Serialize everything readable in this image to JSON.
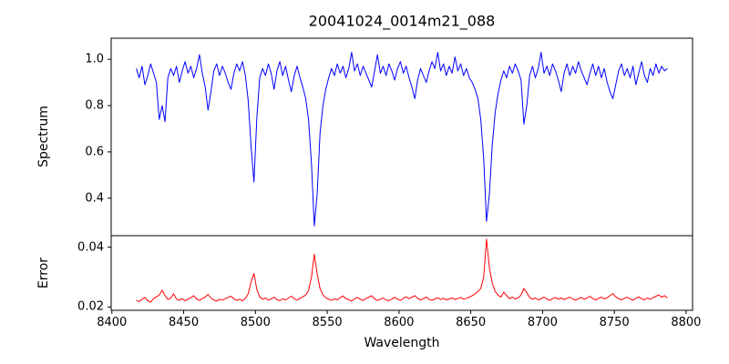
{
  "figure": {
    "title": "20041024_0014m21_088",
    "xlabel": "Wavelength",
    "background": "#ffffff",
    "spine_color": "#000000",
    "text_color": "#000000"
  },
  "chart_data": {
    "type": "line",
    "title": "20041024_0014m21_088",
    "xlabel": "Wavelength",
    "grid": false,
    "legend": "none",
    "x_start": 8417,
    "x_step": 2,
    "n_points": 186,
    "xlim": [
      8399.5,
      8804.5
    ],
    "xticks": [
      "8400",
      "8450",
      "8500",
      "8550",
      "8600",
      "8650",
      "8700",
      "8750",
      "8800"
    ],
    "notable_features": {
      "absorption_lines_wavelength": [
        8498,
        8542,
        8662
      ],
      "absorption_line_depths": [
        0.47,
        0.28,
        0.3
      ],
      "error_peak_values": [
        0.031,
        0.038,
        0.043
      ]
    },
    "panels": [
      {
        "name": "spectrum",
        "ylabel": "Spectrum",
        "color": "#0000ff",
        "ylim": [
          0.238,
          1.091
        ],
        "yticks": [
          "0.4",
          "0.6",
          "0.8",
          "1.0"
        ],
        "values": [
          0.96,
          0.92,
          0.97,
          0.89,
          0.93,
          0.98,
          0.94,
          0.9,
          0.74,
          0.8,
          0.73,
          0.92,
          0.96,
          0.93,
          0.97,
          0.9,
          0.95,
          0.99,
          0.94,
          0.97,
          0.92,
          0.96,
          1.02,
          0.94,
          0.88,
          0.78,
          0.86,
          0.95,
          0.98,
          0.93,
          0.97,
          0.94,
          0.9,
          0.87,
          0.94,
          0.98,
          0.95,
          0.99,
          0.93,
          0.82,
          0.62,
          0.47,
          0.75,
          0.92,
          0.96,
          0.93,
          0.98,
          0.94,
          0.87,
          0.95,
          0.99,
          0.93,
          0.97,
          0.91,
          0.86,
          0.93,
          0.97,
          0.92,
          0.88,
          0.83,
          0.74,
          0.55,
          0.28,
          0.42,
          0.68,
          0.8,
          0.87,
          0.92,
          0.96,
          0.93,
          0.98,
          0.94,
          0.97,
          0.92,
          0.96,
          1.03,
          0.95,
          0.98,
          0.93,
          0.97,
          0.94,
          0.91,
          0.88,
          0.95,
          1.02,
          0.94,
          0.97,
          0.93,
          0.98,
          0.95,
          0.91,
          0.96,
          0.99,
          0.94,
          0.97,
          0.92,
          0.88,
          0.83,
          0.91,
          0.96,
          0.93,
          0.9,
          0.95,
          0.99,
          0.96,
          1.03,
          0.95,
          0.98,
          0.93,
          0.97,
          0.94,
          1.01,
          0.95,
          0.98,
          0.93,
          0.96,
          0.92,
          0.9,
          0.87,
          0.83,
          0.74,
          0.57,
          0.3,
          0.42,
          0.63,
          0.77,
          0.85,
          0.91,
          0.95,
          0.92,
          0.97,
          0.94,
          0.98,
          0.95,
          0.91,
          0.72,
          0.8,
          0.93,
          0.97,
          0.92,
          0.96,
          1.03,
          0.94,
          0.97,
          0.93,
          0.98,
          0.95,
          0.91,
          0.86,
          0.94,
          0.98,
          0.93,
          0.97,
          0.94,
          0.99,
          0.95,
          0.92,
          0.89,
          0.94,
          0.98,
          0.93,
          0.97,
          0.92,
          0.96,
          0.9,
          0.86,
          0.83,
          0.89,
          0.95,
          0.98,
          0.93,
          0.96,
          0.92,
          0.97,
          0.89,
          0.94,
          0.99,
          0.93,
          0.9,
          0.96,
          0.93,
          0.98,
          0.94,
          0.97,
          0.95,
          0.96
        ]
      },
      {
        "name": "error",
        "ylabel": "Error",
        "color": "#ff0000",
        "ylim": [
          0.0189,
          0.0438
        ],
        "yticks": [
          "0.02",
          "0.04"
        ],
        "values": [
          0.0222,
          0.0218,
          0.0226,
          0.0232,
          0.0221,
          0.0216,
          0.0228,
          0.0234,
          0.024,
          0.0256,
          0.0238,
          0.0225,
          0.023,
          0.0244,
          0.0226,
          0.0222,
          0.0228,
          0.0221,
          0.0226,
          0.0231,
          0.0238,
          0.0227,
          0.0222,
          0.0228,
          0.0233,
          0.0242,
          0.023,
          0.0224,
          0.0219,
          0.0226,
          0.0223,
          0.0228,
          0.0232,
          0.0236,
          0.0227,
          0.0222,
          0.0226,
          0.0221,
          0.0229,
          0.0244,
          0.0285,
          0.0312,
          0.0258,
          0.0234,
          0.0226,
          0.023,
          0.0223,
          0.0227,
          0.0233,
          0.0225,
          0.0221,
          0.0227,
          0.0224,
          0.023,
          0.0236,
          0.0228,
          0.0223,
          0.0229,
          0.0234,
          0.024,
          0.0255,
          0.03,
          0.0376,
          0.031,
          0.0262,
          0.024,
          0.0231,
          0.0226,
          0.0222,
          0.0228,
          0.0224,
          0.0231,
          0.0237,
          0.0228,
          0.0224,
          0.022,
          0.0227,
          0.0232,
          0.0226,
          0.0222,
          0.0228,
          0.0233,
          0.0238,
          0.0227,
          0.0222,
          0.0226,
          0.023,
          0.0224,
          0.0221,
          0.0227,
          0.0232,
          0.0226,
          0.0222,
          0.0229,
          0.0234,
          0.0228,
          0.0233,
          0.0238,
          0.0229,
          0.0224,
          0.0228,
          0.0233,
          0.0226,
          0.0222,
          0.0227,
          0.0231,
          0.0225,
          0.0229,
          0.0224,
          0.0227,
          0.023,
          0.0225,
          0.0228,
          0.0232,
          0.0226,
          0.0229,
          0.0233,
          0.0238,
          0.0244,
          0.0252,
          0.0262,
          0.03,
          0.0427,
          0.033,
          0.028,
          0.0252,
          0.024,
          0.0233,
          0.025,
          0.0238,
          0.0228,
          0.0233,
          0.0227,
          0.0231,
          0.024,
          0.0262,
          0.0248,
          0.0232,
          0.0226,
          0.023,
          0.0224,
          0.0228,
          0.0233,
          0.0227,
          0.0222,
          0.0228,
          0.0232,
          0.0226,
          0.023,
          0.0225,
          0.0229,
          0.0233,
          0.0227,
          0.0223,
          0.0228,
          0.0232,
          0.0226,
          0.023,
          0.0236,
          0.0228,
          0.0224,
          0.0229,
          0.0233,
          0.0227,
          0.0231,
          0.0238,
          0.0245,
          0.0234,
          0.0228,
          0.0224,
          0.0229,
          0.0233,
          0.0227,
          0.0223,
          0.0229,
          0.0234,
          0.0228,
          0.0224,
          0.023,
          0.0226,
          0.0231,
          0.0236,
          0.024,
          0.0233,
          0.0238,
          0.023
        ]
      }
    ]
  }
}
